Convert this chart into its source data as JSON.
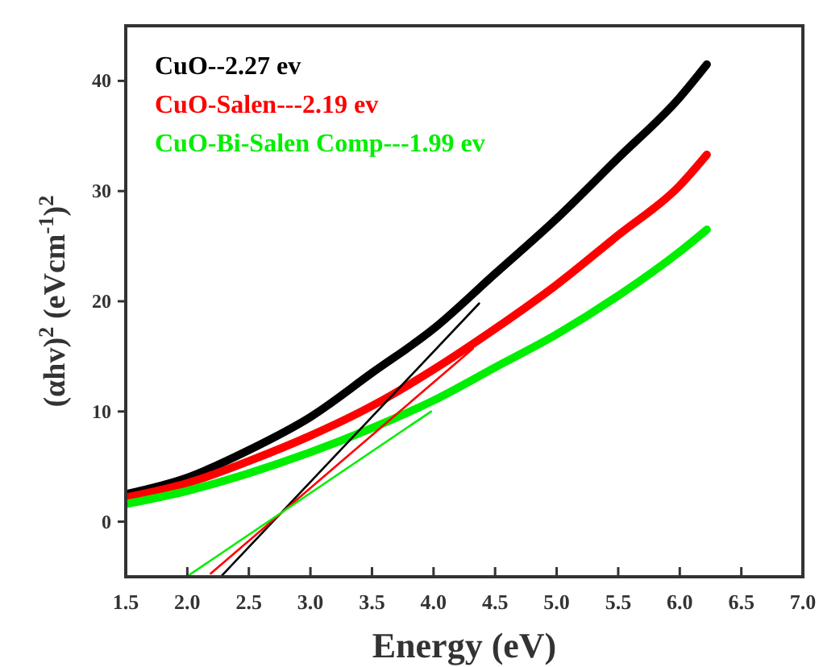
{
  "chart_data": {
    "type": "line",
    "xlabel": "Energy (eV)",
    "ylabel": "(αhv)$^{2}$ (eVcm$^{-1}$)$^{2}$",
    "xlim": [
      1.5,
      7.0
    ],
    "xticks": [
      1.5,
      {
        "value": 2,
        "label": "2.0"
      },
      2.5,
      {
        "value": 3,
        "label": "3.0"
      },
      3.5,
      {
        "value": 4,
        "label": "4.0"
      },
      4.5,
      {
        "value": 5,
        "label": "5.0"
      },
      5.5,
      {
        "value": 6,
        "label": "6.0"
      },
      6.5,
      {
        "value": 7,
        "label": "7.0"
      }
    ],
    "ylim": [
      -5,
      45
    ],
    "yticks": [
      0,
      10,
      20,
      30,
      40
    ],
    "grid": false,
    "legend": "top left",
    "x": [
      1.5,
      2.0,
      2.5,
      3.0,
      3.5,
      4.0,
      4.5,
      5.0,
      5.5,
      6.0,
      6.22
    ],
    "series": [
      {
        "name": "CuO--2.27 ev",
        "color": "#000000",
        "values": [
          2.5,
          4,
          6.5,
          9.5,
          13.5,
          17.5,
          22.5,
          27.5,
          33,
          38.5,
          41.5
        ]
      },
      {
        "name": "CuO-Salen---2.19 ev",
        "color": "#ff0000",
        "values": [
          2.2,
          3.5,
          5.5,
          7.8,
          10.5,
          13.8,
          17.5,
          21.5,
          26,
          30.5,
          33.3
        ]
      },
      {
        "name": "CuO-Bi-Salen Comp---1.99 ev",
        "color": "#00ee00",
        "values": [
          1.6,
          2.8,
          4.4,
          6.3,
          8.5,
          11,
          14,
          17,
          20.5,
          24.5,
          26.5
        ]
      },
      {
        "type": "line",
        "color": "#000000",
        "x": [
          2.28,
          4.37
        ],
        "values": [
          -4.9,
          19.8
        ]
      },
      {
        "type": "line",
        "color": "#ff0000",
        "x": [
          2.19,
          4.32
        ],
        "values": [
          -4.7,
          15.7
        ]
      },
      {
        "type": "line",
        "color": "#00ee00",
        "x": [
          2.02,
          3.98
        ],
        "values": [
          -4.8,
          10
        ]
      }
    ]
  }
}
